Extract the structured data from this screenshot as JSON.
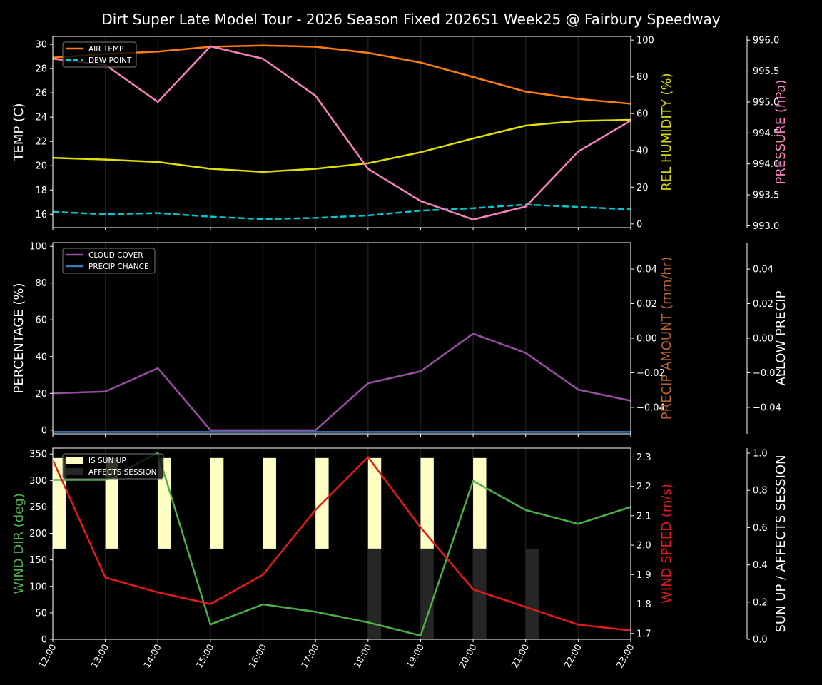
{
  "title": "Dirt Super Late Model Tour - 2026 Season Fixed 2026S1 Week25 @ Fairbury Speedway",
  "chart_data": [
    {
      "type": "line",
      "x": [
        "12:00",
        "13:00",
        "14:00",
        "15:00",
        "16:00",
        "17:00",
        "18:00",
        "19:00",
        "20:00",
        "21:00",
        "22:00",
        "23:00"
      ],
      "grid": "vertical",
      "legend": "top-left",
      "axes": [
        {
          "side": "left",
          "label": "TEMP (C)",
          "label_color": "#ffffff",
          "range": [
            14.9,
            30.65
          ],
          "ticks": [
            16,
            18,
            20,
            22,
            24,
            26,
            28,
            30
          ],
          "tick_labels": [
            "16",
            "18",
            "20",
            "22",
            "24",
            "26",
            "28",
            "30"
          ]
        },
        {
          "side": "right",
          "label": "REL HUMIDITY (%)",
          "label_color": "#d8d800",
          "range": [
            -2,
            102
          ],
          "ticks": [
            0,
            20,
            40,
            60,
            80,
            100
          ],
          "tick_labels": [
            "0",
            "20",
            "40",
            "60",
            "80",
            "100"
          ]
        },
        {
          "side": "right2",
          "label": "PRESSURE (hPa)",
          "label_color": "#f781bf",
          "range": [
            992.97,
            996.06
          ],
          "ticks": [
            993.0,
            993.5,
            994.0,
            994.5,
            995.0,
            995.5,
            996.0
          ],
          "tick_labels": [
            "993.0",
            "993.5",
            "994.0",
            "994.5",
            "995.0",
            "995.5",
            "996.0"
          ]
        }
      ],
      "series": [
        {
          "name": "AIR TEMP",
          "axis": 0,
          "color": "#ff7f0e",
          "dash": false,
          "legend": true,
          "values": [
            28.9,
            29.2,
            29.4,
            29.8,
            29.9,
            29.8,
            29.3,
            28.5,
            27.3,
            26.1,
            25.5,
            25.1
          ]
        },
        {
          "name": "DEW POINT",
          "axis": 0,
          "color": "#00c8d0",
          "dash": true,
          "legend": true,
          "values": [
            16.2,
            16.0,
            16.1,
            15.8,
            15.6,
            15.7,
            15.9,
            16.3,
            16.5,
            16.8,
            16.6,
            16.4
          ]
        },
        {
          "axis": 1,
          "color": "#e0e000",
          "dash": false,
          "legend": false,
          "values": [
            36,
            35,
            33.7,
            30,
            28.3,
            30,
            33,
            39,
            46.5,
            53.5,
            56,
            56.6
          ]
        },
        {
          "axis": 2,
          "color": "#f781bf",
          "dash": false,
          "legend": false,
          "values": [
            995.7,
            995.6,
            995.0,
            995.9,
            995.7,
            995.1,
            993.92,
            993.4,
            993.1,
            993.31,
            994.2,
            994.7
          ]
        }
      ]
    },
    {
      "type": "line",
      "x": [
        "12:00",
        "13:00",
        "14:00",
        "15:00",
        "16:00",
        "17:00",
        "18:00",
        "19:00",
        "20:00",
        "21:00",
        "22:00",
        "23:00"
      ],
      "grid": "vertical",
      "legend": "top-left",
      "axes": [
        {
          "side": "left",
          "label": "PERCENTAGE (%)",
          "label_color": "#ffffff",
          "range": [
            -2,
            102
          ],
          "ticks": [
            0,
            20,
            40,
            60,
            80,
            100
          ],
          "tick_labels": [
            "0",
            "20",
            "40",
            "60",
            "80",
            "100"
          ]
        },
        {
          "side": "right",
          "label": "PRECIP AMOUNT (mm/hr)",
          "label_color": "#b8622f",
          "range": [
            -0.0553,
            0.0553
          ],
          "ticks": [
            -0.04,
            -0.02,
            0,
            0.02,
            0.04
          ],
          "tick_labels": [
            "−0.04",
            "−0.02",
            "0.00",
            "0.02",
            "0.04"
          ]
        },
        {
          "side": "right2",
          "label": "ALLOW PRECIP",
          "label_color": "#ffffff",
          "range": [
            -0.0553,
            0.0553
          ],
          "ticks": [
            -0.04,
            -0.02,
            0,
            0.02,
            0.04
          ],
          "tick_labels": [
            "−0.04",
            "−0.02",
            "0.00",
            "0.02",
            "0.04"
          ]
        }
      ],
      "series": [
        {
          "name": "CLOUD COVER",
          "axis": 0,
          "color": "#984ea3",
          "dash": false,
          "legend": true,
          "values": [
            20,
            21,
            33.7,
            0,
            0,
            0,
            25.5,
            32,
            52.5,
            42,
            22,
            16
          ]
        },
        {
          "name": "PRECIP CHANCE",
          "axis": 0,
          "color": "#377eb8",
          "dash": false,
          "legend": true,
          "values": [
            -1,
            -1,
            -1,
            -1,
            -1,
            -1,
            -1,
            -1,
            -1,
            -1,
            -1,
            -1
          ]
        }
      ]
    },
    {
      "type": "line",
      "x": [
        "12:00",
        "13:00",
        "14:00",
        "15:00",
        "16:00",
        "17:00",
        "18:00",
        "19:00",
        "20:00",
        "21:00",
        "22:00",
        "23:00"
      ],
      "grid": "vertical",
      "legend": "top-left",
      "axes": [
        {
          "side": "left",
          "label": "WIND DIR (deg)",
          "label_color": "#4daf4a",
          "range": [
            0,
            361
          ],
          "ticks": [
            0,
            50,
            100,
            150,
            200,
            250,
            300,
            350
          ],
          "tick_labels": [
            "0",
            "50",
            "100",
            "150",
            "200",
            "250",
            "300",
            "350"
          ]
        },
        {
          "side": "right",
          "label": "WIND SPEED (m/s)",
          "label_color": "#e41a1c",
          "range": [
            1.68,
            2.33
          ],
          "ticks": [
            1.7,
            1.8,
            1.9,
            2.0,
            2.1,
            2.2,
            2.3
          ],
          "tick_labels": [
            "1.7",
            "1.8",
            "1.9",
            "2.0",
            "2.1",
            "2.2",
            "2.3"
          ]
        },
        {
          "side": "right2",
          "label": "SUN UP / AFFECTS SESSION",
          "label_color": "#ffffff",
          "range": [
            0,
            1.027
          ],
          "ticks": [
            0,
            0.2,
            0.4,
            0.6,
            0.8,
            1.0
          ],
          "tick_labels": [
            "0.0",
            "0.2",
            "0.4",
            "0.6",
            "0.8",
            "1.0"
          ]
        }
      ],
      "bars": [
        {
          "name": "IS SUN UP",
          "axis": 2,
          "color": "#ffffc4",
          "values": [
            1,
            1,
            1,
            1,
            1,
            1,
            1,
            1,
            1,
            0,
            0,
            0
          ]
        },
        {
          "name": "AFFECTS SESSION",
          "axis": 2,
          "color": "#262626",
          "values": [
            0,
            0,
            0,
            0,
            0,
            0,
            1,
            1,
            1,
            1,
            0,
            0
          ]
        }
      ],
      "series": [
        {
          "axis": 0,
          "color": "#4daf4a",
          "dash": false,
          "legend": false,
          "values": [
            301,
            301,
            352,
            28,
            66,
            52,
            32,
            7,
            299,
            244,
            218,
            250
          ]
        },
        {
          "axis": 1,
          "color": "#e41a1c",
          "dash": false,
          "legend": false,
          "values": [
            2.29,
            1.89,
            1.84,
            1.8,
            1.9,
            2.12,
            2.3,
            2.06,
            1.85,
            1.79,
            1.73,
            1.71
          ]
        }
      ]
    }
  ]
}
